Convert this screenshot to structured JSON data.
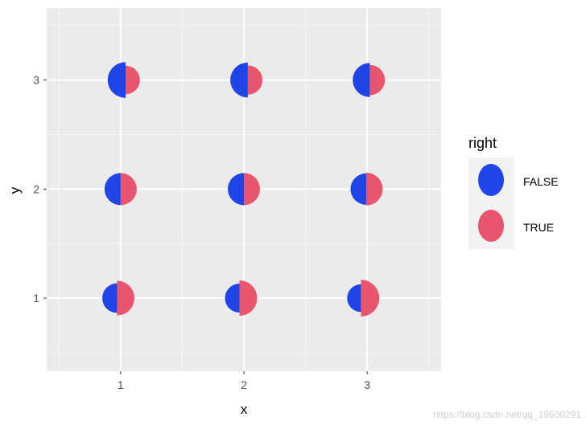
{
  "chart_data": {
    "type": "scatter",
    "title": "",
    "xlabel": "x",
    "ylabel": "y",
    "xlim": [
      0.4,
      3.6
    ],
    "ylim": [
      0.33,
      3.66
    ],
    "x_ticks": [
      1,
      2,
      3
    ],
    "y_ticks": [
      1,
      2,
      3
    ],
    "x_tick_labels": [
      "1",
      "2",
      "3"
    ],
    "y_tick_labels": [
      "1",
      "2",
      "3"
    ],
    "grid": true,
    "legend_position": "right",
    "legend": {
      "title": "right",
      "entries": [
        {
          "label": "FALSE",
          "color": "#1f45e6"
        },
        {
          "label": "TRUE",
          "color": "#e8566e"
        }
      ]
    },
    "points": [
      {
        "x": 1,
        "y": 3,
        "blue_share": 0.78
      },
      {
        "x": 2,
        "y": 3,
        "blue_share": 0.72
      },
      {
        "x": 3,
        "y": 3,
        "blue_share": 0.65
      },
      {
        "x": 1,
        "y": 2,
        "blue_share": 0.5
      },
      {
        "x": 2,
        "y": 2,
        "blue_share": 0.5
      },
      {
        "x": 3,
        "y": 2,
        "blue_share": 0.45
      },
      {
        "x": 1,
        "y": 1,
        "blue_share": 0.3
      },
      {
        "x": 2,
        "y": 1,
        "blue_share": 0.25
      },
      {
        "x": 3,
        "y": 1,
        "blue_share": 0.15
      }
    ],
    "colors": {
      "panel": "#ebebeb",
      "grid_major": "#ffffff",
      "grid_minor": "#f5f5f5",
      "false": "#1f45e6",
      "true": "#e8566e"
    }
  },
  "watermark": "https://blog.csdn.net/qq_19600291"
}
